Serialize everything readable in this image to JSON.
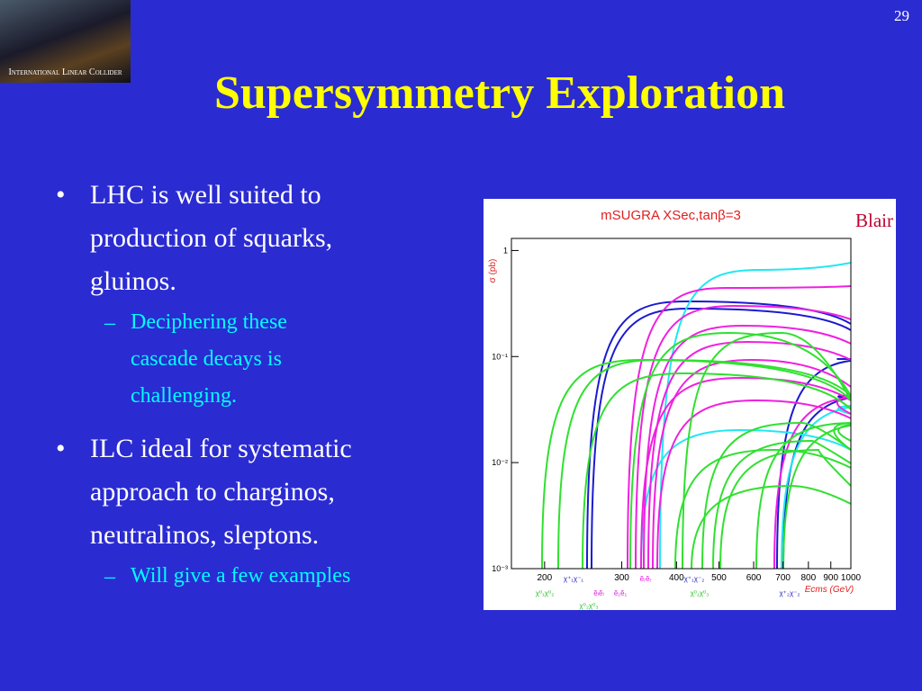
{
  "slide_number": "29",
  "logo": {
    "text": "International Linear Collider"
  },
  "title": "Supersymmetry Exploration",
  "bullets": [
    {
      "lines": [
        "LHC is well suited to",
        "production of squarks,",
        "gluinos."
      ],
      "sub": [
        {
          "lines": [
            "Deciphering these",
            "cascade decays is",
            "challenging."
          ]
        }
      ]
    },
    {
      "lines": [
        "ILC ideal for systematic",
        "approach to charginos,",
        "neutralinos, sleptons."
      ],
      "sub": [
        {
          "lines": [
            "Will give a few examples"
          ]
        }
      ]
    }
  ],
  "figure": {
    "title": "mSUGRA XSec,tanβ=3",
    "credit": "Blair",
    "ylabel": "σ (pb)",
    "xlabel": "Ecms (GeV)",
    "xscale": "log",
    "yscale": "log",
    "xlim": [
      168,
      1000
    ],
    "ylim": [
      0.001,
      1.3
    ],
    "xticks": [
      200,
      300,
      400,
      500,
      600,
      700,
      800,
      900,
      1000
    ],
    "yticks": [
      1,
      {
        "value": 0.1,
        "label": "10⁻¹"
      },
      {
        "value": 0.01,
        "label": "10⁻²"
      },
      {
        "value": 0.001,
        "label": "10⁻³"
      }
    ],
    "process_labels": [
      {
        "text": "χ⁺₁χ⁻₁",
        "color": "#2020c0"
      },
      {
        "text": "χ⁰₁χ⁰₂",
        "color": "#20c020"
      },
      {
        "text": "ẽₗẽₗ",
        "color": "#e020e0"
      },
      {
        "text": "ẽ₁ẽ₁",
        "color": "#e020e0"
      },
      {
        "text": "ẽᵣẽᵣ",
        "color": "#e020e0"
      },
      {
        "text": "χ⁺₁χ⁻₂",
        "color": "#2020c0"
      },
      {
        "text": "χ⁰₁χ⁰₃",
        "color": "#20c020"
      },
      {
        "text": "χ⁰₂χ⁰₃",
        "color": "#20c020"
      },
      {
        "text": "χ⁺₂χ⁻₂",
        "color": "#2020c0"
      }
    ]
  }
}
